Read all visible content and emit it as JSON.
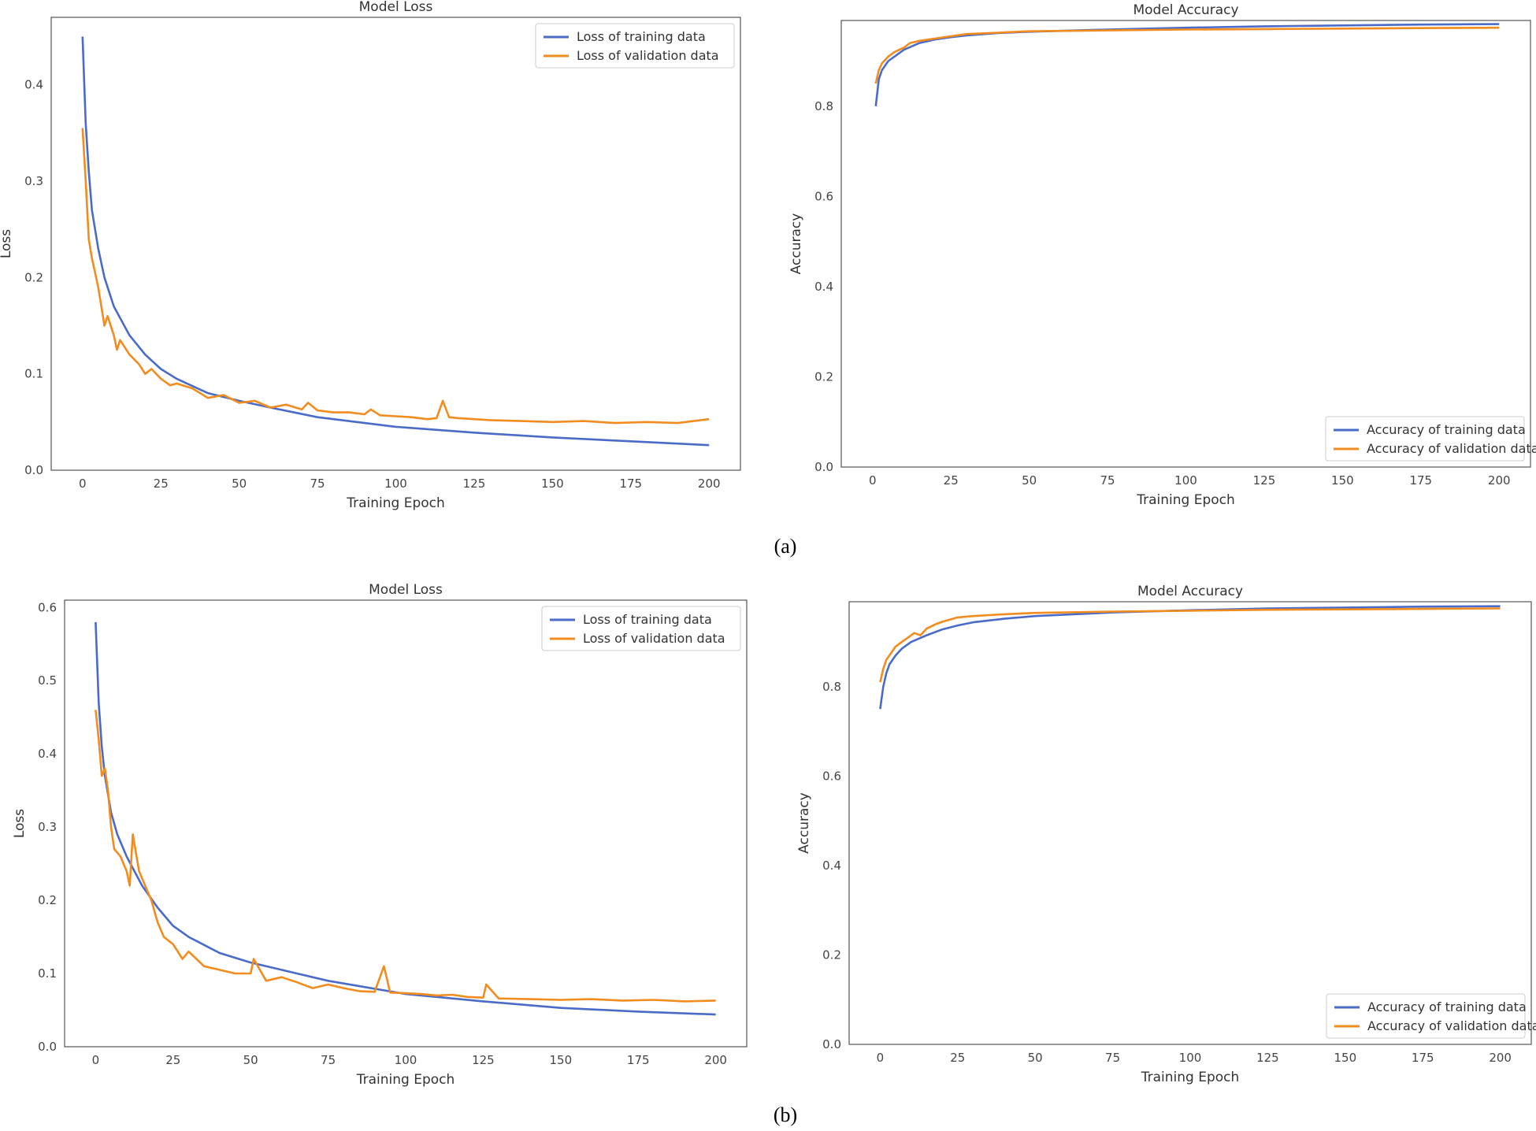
{
  "figure": {
    "captions": [
      "(a)",
      "(b)"
    ]
  },
  "chart_data": [
    {
      "id": "a-loss",
      "type": "line",
      "title": "Model Loss",
      "xlabel": "Training Epoch",
      "ylabel": "Loss",
      "xlim": [
        -10,
        210
      ],
      "ylim": [
        0,
        0.47
      ],
      "xticks": [
        0,
        25,
        50,
        75,
        100,
        125,
        150,
        175,
        200
      ],
      "xtick_labels": [
        "0",
        "25",
        "50",
        "75",
        "100",
        "125",
        "150",
        "175",
        "200"
      ],
      "yticks": [
        0,
        0.1,
        0.2,
        0.3,
        0.4
      ],
      "ytick_labels": [
        "0.0",
        "0.1",
        "0.2",
        "0.3",
        "0.4"
      ],
      "legend": "top-right",
      "series": [
        {
          "name": "Loss of training data",
          "color": "#4a6bc8",
          "x": [
            0,
            1,
            2,
            3,
            5,
            7,
            10,
            15,
            20,
            25,
            30,
            40,
            50,
            60,
            75,
            100,
            125,
            150,
            175,
            200
          ],
          "y": [
            0.45,
            0.36,
            0.31,
            0.27,
            0.23,
            0.2,
            0.17,
            0.14,
            0.12,
            0.105,
            0.095,
            0.08,
            0.072,
            0.065,
            0.055,
            0.045,
            0.039,
            0.034,
            0.03,
            0.026
          ]
        },
        {
          "name": "Loss of validation data",
          "color": "#f28c1e",
          "x": [
            0,
            1,
            2,
            3,
            5,
            7,
            8,
            10,
            11,
            12,
            15,
            18,
            20,
            22,
            25,
            28,
            30,
            35,
            40,
            45,
            50,
            55,
            60,
            65,
            70,
            72,
            75,
            80,
            85,
            90,
            92,
            95,
            100,
            105,
            110,
            113,
            115,
            117,
            120,
            130,
            140,
            150,
            160,
            170,
            180,
            190,
            195,
            200
          ],
          "y": [
            0.355,
            0.3,
            0.24,
            0.22,
            0.19,
            0.15,
            0.16,
            0.14,
            0.125,
            0.135,
            0.12,
            0.11,
            0.1,
            0.105,
            0.095,
            0.088,
            0.09,
            0.085,
            0.075,
            0.078,
            0.07,
            0.072,
            0.065,
            0.068,
            0.063,
            0.07,
            0.062,
            0.06,
            0.06,
            0.058,
            0.063,
            0.057,
            0.056,
            0.055,
            0.053,
            0.054,
            0.072,
            0.055,
            0.054,
            0.052,
            0.051,
            0.05,
            0.051,
            0.049,
            0.05,
            0.049,
            0.051,
            0.053
          ]
        }
      ]
    },
    {
      "id": "a-acc",
      "type": "line",
      "title": "Model Accuracy",
      "xlabel": "Training Epoch",
      "ylabel": "Accuracy",
      "xlim": [
        -10,
        210
      ],
      "ylim": [
        0,
        0.99
      ],
      "xticks": [
        0,
        25,
        50,
        75,
        100,
        125,
        150,
        175,
        200
      ],
      "xtick_labels": [
        "0",
        "25",
        "50",
        "75",
        "100",
        "125",
        "150",
        "175",
        "200"
      ],
      "yticks": [
        0,
        0.2,
        0.4,
        0.6,
        0.8
      ],
      "ytick_labels": [
        "0.0",
        "0.2",
        "0.4",
        "0.6",
        "0.8"
      ],
      "legend": "bottom-right",
      "series": [
        {
          "name": "Accuracy of training data",
          "color": "#4a6bc8",
          "x": [
            1,
            2,
            3,
            5,
            7,
            10,
            15,
            20,
            25,
            30,
            40,
            50,
            75,
            100,
            125,
            150,
            175,
            200
          ],
          "y": [
            0.8,
            0.86,
            0.88,
            0.9,
            0.91,
            0.925,
            0.94,
            0.948,
            0.953,
            0.957,
            0.962,
            0.965,
            0.97,
            0.974,
            0.977,
            0.979,
            0.981,
            0.982
          ]
        },
        {
          "name": "Accuracy of validation data",
          "color": "#f28c1e",
          "x": [
            1,
            2,
            3,
            5,
            7,
            10,
            12,
            15,
            20,
            25,
            30,
            40,
            50,
            75,
            100,
            125,
            150,
            175,
            200
          ],
          "y": [
            0.85,
            0.88,
            0.895,
            0.91,
            0.92,
            0.93,
            0.94,
            0.945,
            0.95,
            0.955,
            0.96,
            0.963,
            0.966,
            0.968,
            0.97,
            0.971,
            0.972,
            0.973,
            0.974
          ]
        }
      ]
    },
    {
      "id": "b-loss",
      "type": "line",
      "title": "Model Loss",
      "xlabel": "Training Epoch",
      "ylabel": "Loss",
      "xlim": [
        -10,
        210
      ],
      "ylim": [
        0,
        0.61
      ],
      "xticks": [
        0,
        25,
        50,
        75,
        100,
        125,
        150,
        175,
        200
      ],
      "xtick_labels": [
        "0",
        "25",
        "50",
        "75",
        "100",
        "125",
        "150",
        "175",
        "200"
      ],
      "yticks": [
        0,
        0.1,
        0.2,
        0.3,
        0.4,
        0.5,
        0.6
      ],
      "ytick_labels": [
        "0.0",
        "0.1",
        "0.2",
        "0.3",
        "0.4",
        "0.5",
        "0.6"
      ],
      "legend": "top-right",
      "series": [
        {
          "name": "Loss of training data",
          "color": "#4a6bc8",
          "x": [
            0,
            1,
            2,
            3,
            5,
            7,
            10,
            15,
            20,
            25,
            30,
            40,
            50,
            60,
            75,
            100,
            125,
            150,
            175,
            200
          ],
          "y": [
            0.58,
            0.47,
            0.41,
            0.37,
            0.32,
            0.29,
            0.26,
            0.22,
            0.19,
            0.165,
            0.15,
            0.128,
            0.115,
            0.105,
            0.09,
            0.072,
            0.062,
            0.053,
            0.048,
            0.044
          ]
        },
        {
          "name": "Loss of validation data",
          "color": "#f28c1e",
          "x": [
            0,
            1,
            2,
            3,
            4,
            5,
            6,
            8,
            10,
            11,
            12,
            14,
            16,
            18,
            20,
            22,
            25,
            28,
            30,
            35,
            40,
            45,
            50,
            51,
            55,
            60,
            65,
            70,
            75,
            80,
            85,
            90,
            93,
            95,
            100,
            105,
            110,
            115,
            120,
            125,
            126,
            130,
            140,
            150,
            160,
            170,
            180,
            190,
            200
          ],
          "y": [
            0.46,
            0.42,
            0.37,
            0.38,
            0.35,
            0.3,
            0.27,
            0.26,
            0.24,
            0.22,
            0.29,
            0.24,
            0.22,
            0.2,
            0.17,
            0.15,
            0.14,
            0.12,
            0.13,
            0.11,
            0.105,
            0.1,
            0.1,
            0.12,
            0.09,
            0.095,
            0.088,
            0.08,
            0.085,
            0.08,
            0.076,
            0.075,
            0.11,
            0.074,
            0.073,
            0.072,
            0.07,
            0.071,
            0.068,
            0.067,
            0.085,
            0.066,
            0.065,
            0.064,
            0.065,
            0.063,
            0.064,
            0.062,
            0.063
          ]
        }
      ]
    },
    {
      "id": "b-acc",
      "type": "line",
      "title": "Model Accuracy",
      "xlabel": "Training Epoch",
      "ylabel": "Accuracy",
      "xlim": [
        -10,
        210
      ],
      "ylim": [
        0,
        0.99
      ],
      "xticks": [
        0,
        25,
        50,
        75,
        100,
        125,
        150,
        175,
        200
      ],
      "xtick_labels": [
        "0",
        "25",
        "50",
        "75",
        "100",
        "125",
        "150",
        "175",
        "200"
      ],
      "yticks": [
        0,
        0.2,
        0.4,
        0.6,
        0.8
      ],
      "ytick_labels": [
        "0.0",
        "0.2",
        "0.4",
        "0.6",
        "0.8"
      ],
      "legend": "bottom-right",
      "series": [
        {
          "name": "Accuracy of training data",
          "color": "#4a6bc8",
          "x": [
            0,
            1,
            2,
            3,
            5,
            7,
            10,
            15,
            20,
            25,
            30,
            40,
            50,
            75,
            100,
            125,
            150,
            175,
            200
          ],
          "y": [
            0.75,
            0.8,
            0.83,
            0.85,
            0.87,
            0.885,
            0.9,
            0.915,
            0.928,
            0.937,
            0.944,
            0.952,
            0.958,
            0.966,
            0.971,
            0.975,
            0.977,
            0.979,
            0.98
          ]
        },
        {
          "name": "Accuracy of validation data",
          "color": "#f28c1e",
          "x": [
            0,
            1,
            2,
            3,
            5,
            7,
            9,
            11,
            13,
            15,
            18,
            20,
            25,
            30,
            40,
            50,
            75,
            100,
            125,
            150,
            175,
            200
          ],
          "y": [
            0.81,
            0.84,
            0.86,
            0.87,
            0.89,
            0.9,
            0.91,
            0.92,
            0.915,
            0.93,
            0.94,
            0.945,
            0.955,
            0.958,
            0.962,
            0.965,
            0.968,
            0.97,
            0.972,
            0.973,
            0.974,
            0.975
          ]
        }
      ]
    }
  ]
}
